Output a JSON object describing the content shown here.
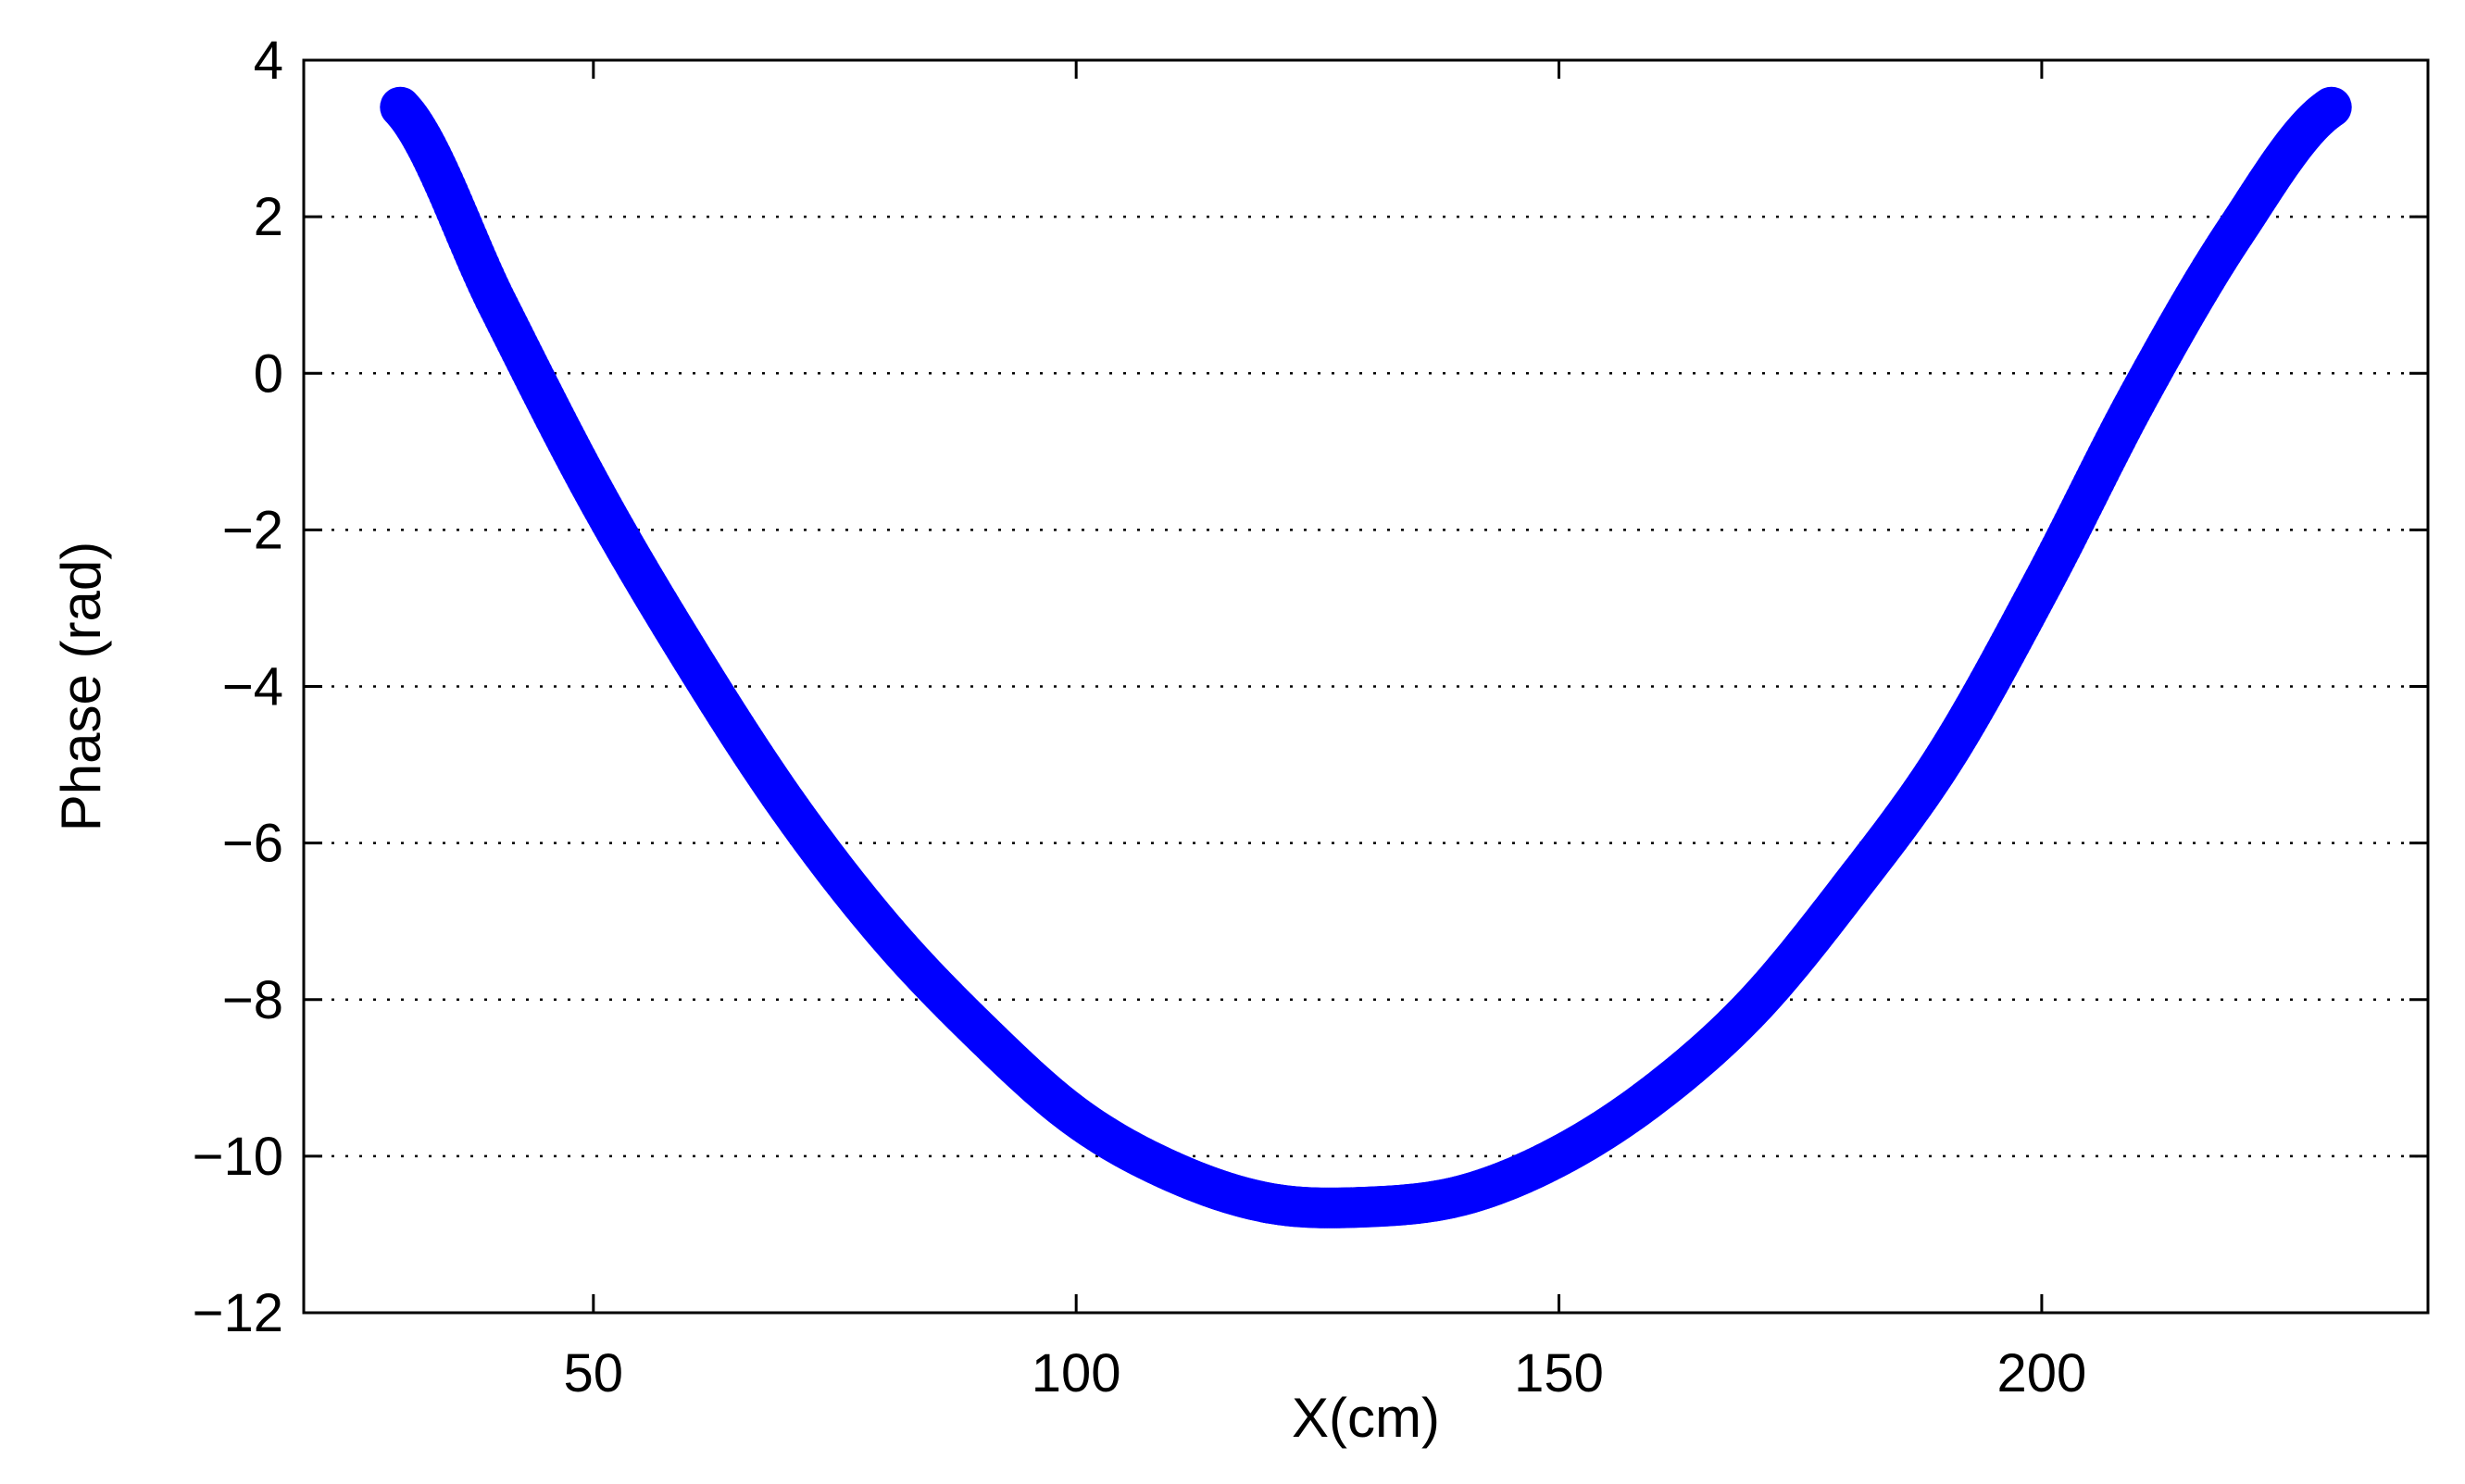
{
  "chart_data": {
    "type": "scatter",
    "title": "",
    "xlabel": "X(cm)",
    "ylabel": "Phase (rad)",
    "xlim": [
      20,
      240
    ],
    "ylim": [
      -12,
      4
    ],
    "xticks": [
      50,
      100,
      150,
      200
    ],
    "yticks": [
      4,
      2,
      0,
      -2,
      -4,
      -6,
      -8,
      -10,
      -12
    ],
    "xtick_labels": [
      "50",
      "100",
      "150",
      "200"
    ],
    "ytick_labels": [
      "4",
      "2",
      "0",
      "−2",
      "−4",
      "−6",
      "−8",
      "−10",
      "−12"
    ],
    "grid": "horizontal dotted",
    "marker_color": "#0000ff",
    "series": [
      {
        "x": [
          30,
          40,
          50,
          60,
          70,
          80,
          90,
          100,
          110,
          120,
          130,
          140,
          150,
          160,
          170,
          180,
          190,
          200,
          210,
          220,
          230
        ],
        "y": [
          3.4,
          0.9,
          -1.5,
          -3.6,
          -5.5,
          -7.1,
          -8.4,
          -9.5,
          -10.2,
          -10.6,
          -10.65,
          -10.5,
          -10.0,
          -9.2,
          -8.1,
          -6.6,
          -4.9,
          -2.7,
          -0.3,
          1.8,
          3.4
        ]
      }
    ]
  }
}
